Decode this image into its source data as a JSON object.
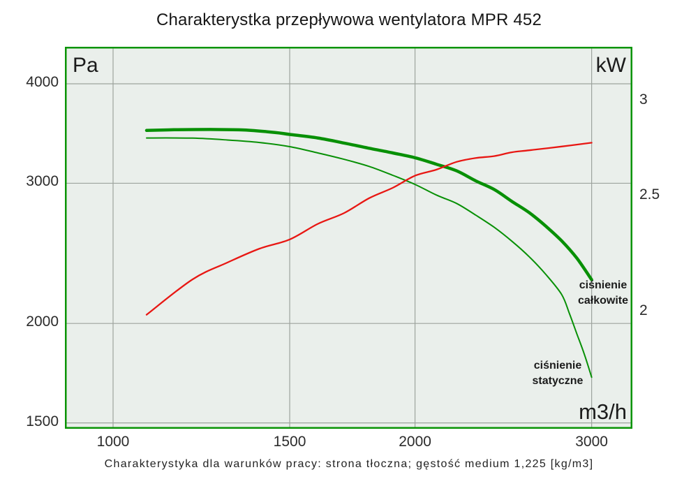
{
  "title": "Charakterystka przepływowa wentylatora MPR 452",
  "caption": "Charakterystyka dla warunków pracy: strona tłoczna; gęstość medium 1,225 [kg/m3]",
  "axis_units": {
    "left": "Pa",
    "right": "kW",
    "x": "m3/h"
  },
  "curve_labels": {
    "total": {
      "line1": "ciśnienie",
      "line2": "całkowite"
    },
    "static": {
      "line1": "ciśnienie",
      "line2": "statyczne"
    }
  },
  "colors": {
    "plot_bg": "#eaefeb",
    "grid": "#9da39d",
    "border": "#0a9406",
    "curve_green": "#089006",
    "curve_red": "#e81713",
    "text": "#1c1c1c"
  },
  "chart_data": {
    "type": "line",
    "title": "Charakterystka przepływowa wentylatora MPR 452",
    "x_axis": {
      "label": "m3/h",
      "scale": "log",
      "ticks": [
        1000,
        1500,
        2000,
        3000
      ],
      "range": [
        895,
        3310
      ]
    },
    "y_axis_left": {
      "label": "Pa",
      "scale": "log",
      "ticks": [
        4000,
        3000,
        2000,
        1500
      ],
      "range": [
        1470,
        4450
      ]
    },
    "y_axis_right": {
      "label": "kW",
      "scale": "log",
      "ticks": [
        3,
        2.5,
        2
      ],
      "range": [
        1.62,
        3.2
      ]
    },
    "grid": true,
    "legend_position": "inline-annotations",
    "series": [
      {
        "id": "cisnienie-calkowite",
        "label": "ciśnienie całkowite",
        "axis": "left",
        "color": "#089006",
        "stroke_width": 4.5,
        "points": [
          [
            1080,
            3495
          ],
          [
            1150,
            3502
          ],
          [
            1250,
            3505
          ],
          [
            1350,
            3500
          ],
          [
            1450,
            3475
          ],
          [
            1500,
            3455
          ],
          [
            1600,
            3420
          ],
          [
            1700,
            3370
          ],
          [
            1800,
            3320
          ],
          [
            1900,
            3275
          ],
          [
            2000,
            3230
          ],
          [
            2100,
            3170
          ],
          [
            2200,
            3110
          ],
          [
            2300,
            3020
          ],
          [
            2400,
            2945
          ],
          [
            2500,
            2845
          ],
          [
            2600,
            2755
          ],
          [
            2700,
            2650
          ],
          [
            2800,
            2540
          ],
          [
            2900,
            2415
          ],
          [
            3000,
            2270
          ]
        ]
      },
      {
        "id": "cisnienie-statyczne",
        "label": "ciśnienie statyczne",
        "axis": "left",
        "color": "#089006",
        "stroke_width": 2,
        "points": [
          [
            1080,
            3420
          ],
          [
            1200,
            3418
          ],
          [
            1300,
            3400
          ],
          [
            1400,
            3375
          ],
          [
            1500,
            3335
          ],
          [
            1600,
            3275
          ],
          [
            1700,
            3215
          ],
          [
            1800,
            3150
          ],
          [
            1900,
            3070
          ],
          [
            2000,
            2990
          ],
          [
            2100,
            2900
          ],
          [
            2200,
            2830
          ],
          [
            2300,
            2735
          ],
          [
            2400,
            2640
          ],
          [
            2500,
            2535
          ],
          [
            2600,
            2425
          ],
          [
            2700,
            2305
          ],
          [
            2800,
            2175
          ],
          [
            2850,
            2060
          ],
          [
            2900,
            1940
          ],
          [
            2950,
            1830
          ],
          [
            3000,
            1712
          ]
        ]
      },
      {
        "id": "moc",
        "label": "",
        "axis": "right",
        "color": "#e81713",
        "stroke_width": 2.3,
        "points": [
          [
            1080,
            1.99
          ],
          [
            1200,
            2.13
          ],
          [
            1300,
            2.2
          ],
          [
            1400,
            2.26
          ],
          [
            1500,
            2.3
          ],
          [
            1600,
            2.37
          ],
          [
            1700,
            2.42
          ],
          [
            1800,
            2.49
          ],
          [
            1900,
            2.54
          ],
          [
            2000,
            2.6
          ],
          [
            2100,
            2.63
          ],
          [
            2200,
            2.67
          ],
          [
            2300,
            2.69
          ],
          [
            2400,
            2.7
          ],
          [
            2500,
            2.72
          ],
          [
            2600,
            2.73
          ],
          [
            2800,
            2.75
          ],
          [
            3000,
            2.77
          ]
        ]
      }
    ]
  }
}
